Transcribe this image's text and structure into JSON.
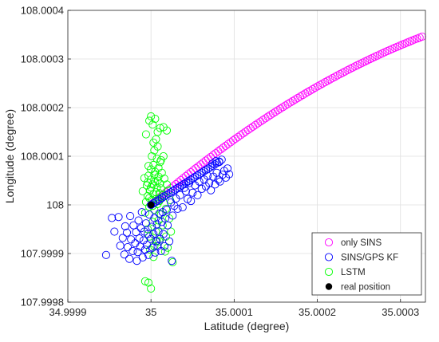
{
  "chart_data": {
    "type": "scatter",
    "title": "",
    "xlabel": "Latitude (degree)",
    "ylabel": "Longitude (degree)",
    "xlim": [
      34.9999,
      35.00033
    ],
    "ylim": [
      107.9998,
      108.0004
    ],
    "xticks": [
      34.9999,
      35.0,
      35.0001,
      35.0002,
      35.0003
    ],
    "xtick_labels": [
      "34.9999",
      "35",
      "35.0001",
      "35.0002",
      "35.0003"
    ],
    "yticks": [
      107.9998,
      107.9999,
      108.0,
      108.0001,
      108.0002,
      108.0003,
      108.0004
    ],
    "ytick_labels": [
      "107.9998",
      "107.9999",
      "108",
      "108.0001",
      "108.0002",
      "108.0003",
      "108.0004"
    ],
    "grid": true,
    "legend_position": "bottom-right",
    "series": [
      {
        "name": "only SINS",
        "color": "#ff00ff",
        "marker": "open-circle",
        "curve": {
          "x_start": 35.0,
          "x_end": 35.000326,
          "y_start": 108.0,
          "y_end": 108.000346,
          "count": 110,
          "shape": "concave"
        }
      },
      {
        "name": "SINS/GPS KF",
        "color": "#0000ff",
        "marker": "open-circle",
        "curve": {
          "x_start": 35.0,
          "x_end": 35.000082,
          "y_start": 108.0,
          "y_end": 108.000089,
          "count": 32,
          "shape": "linear"
        },
        "points": [
          [
            34.999946,
            107.999897
          ],
          [
            34.999953,
            107.999973
          ],
          [
            34.999956,
            107.999945
          ],
          [
            34.999961,
            107.999975
          ],
          [
            34.999963,
            107.999916
          ],
          [
            34.999966,
            107.999932
          ],
          [
            34.999968,
            107.999898
          ],
          [
            34.999969,
            107.999956
          ],
          [
            34.999971,
            107.999943
          ],
          [
            34.999972,
            107.999913
          ],
          [
            34.999974,
            107.999889
          ],
          [
            34.999975,
            107.999977
          ],
          [
            34.999976,
            107.999929
          ],
          [
            34.999978,
            107.999905
          ],
          [
            34.999979,
            107.999958
          ],
          [
            34.999981,
            107.999921
          ],
          [
            34.999982,
            107.999944
          ],
          [
            34.999983,
            107.999885
          ],
          [
            34.999984,
            107.999903
          ],
          [
            34.999985,
            107.999968
          ],
          [
            34.999986,
            107.999931
          ],
          [
            34.999987,
            107.999914
          ],
          [
            34.999988,
            107.999952
          ],
          [
            34.999989,
            107.999985
          ],
          [
            34.99999,
            107.999892
          ],
          [
            34.999991,
            107.999927
          ],
          [
            34.999992,
            107.999945
          ],
          [
            34.999993,
            107.999908
          ],
          [
            34.999994,
            107.999962
          ],
          [
            34.999995,
            107.999918
          ],
          [
            34.999996,
            107.99994
          ],
          [
            34.999997,
            107.999897
          ],
          [
            34.999998,
            107.99998
          ],
          [
            35.0,
            107.99993
          ],
          [
            35.000001,
            107.999955
          ],
          [
            35.000002,
            107.999912
          ],
          [
            35.000003,
            107.99994
          ],
          [
            35.000004,
            107.999973
          ],
          [
            35.000005,
            107.999902
          ],
          [
            35.000006,
            107.999925
          ],
          [
            35.000007,
            107.99996
          ],
          [
            35.000008,
            107.999915
          ],
          [
            35.000009,
            107.999945
          ],
          [
            35.00001,
            107.999982
          ],
          [
            35.000011,
            107.99993
          ],
          [
            35.000012,
            107.999905
          ],
          [
            35.000013,
            107.999965
          ],
          [
            35.000014,
            107.999985
          ],
          [
            35.000015,
            107.99994
          ],
          [
            35.000016,
            107.999915
          ],
          [
            35.000017,
            107.999972
          ],
          [
            35.000019,
            107.99999
          ],
          [
            35.00002,
            107.999958
          ],
          [
            35.000022,
            107.999925
          ],
          [
            35.000024,
            108.000005
          ],
          [
            35.000025,
            107.999885
          ],
          [
            35.000026,
            107.999978
          ],
          [
            35.000028,
            107.999998
          ],
          [
            35.00003,
            108.000013
          ],
          [
            35.000032,
            107.999992
          ],
          [
            35.000035,
            108.00002
          ],
          [
            35.000038,
            107.999995
          ],
          [
            35.00004,
            108.000035
          ],
          [
            35.000042,
            108.000028
          ],
          [
            35.000044,
            108.000012
          ],
          [
            35.000046,
            108.000045
          ],
          [
            35.000048,
            108.000008
          ],
          [
            35.00005,
            108.000025
          ],
          [
            35.000053,
            108.00004
          ],
          [
            35.000056,
            108.00002
          ],
          [
            35.000058,
            108.000048
          ],
          [
            35.000061,
            108.000033
          ],
          [
            35.000064,
            108.000052
          ],
          [
            35.000066,
            108.000038
          ],
          [
            35.000068,
            108.00006
          ],
          [
            35.00007,
            108.000045
          ],
          [
            35.000072,
            108.00003
          ],
          [
            35.000075,
            108.000058
          ],
          [
            35.000077,
            108.000042
          ],
          [
            35.000079,
            108.000066
          ],
          [
            35.000081,
            108.000052
          ],
          [
            35.000083,
            108.000048
          ],
          [
            35.000086,
            108.000062
          ],
          [
            35.000088,
            108.00007
          ],
          [
            35.00009,
            108.000056
          ],
          [
            35.000092,
            108.000075
          ],
          [
            35.000094,
            108.000063
          ],
          [
            35.000074,
            108.000085
          ],
          [
            35.000078,
            108.00009
          ],
          [
            35.000082,
            108.000088
          ],
          [
            35.000085,
            108.000093
          ]
        ]
      },
      {
        "name": "LSTM",
        "color": "#00ff00",
        "marker": "open-circle",
        "points": [
          [
            34.999993,
            107.999984
          ],
          [
            34.999995,
            108.00004
          ],
          [
            34.999996,
            108.000018
          ],
          [
            34.999997,
            108.00006
          ],
          [
            34.999998,
            107.999996
          ],
          [
            34.999999,
            108.00003
          ],
          [
            35.0,
            108.000052
          ],
          [
            35.000001,
            108.00001
          ],
          [
            35.000002,
            108.000042
          ],
          [
            35.000003,
            108.000022
          ],
          [
            35.000004,
            107.99999
          ],
          [
            35.000005,
            108.000048
          ],
          [
            35.000006,
            108.000012
          ],
          [
            35.000007,
            108.000035
          ],
          [
            35.000008,
            108.000002
          ],
          [
            35.000009,
            108.000058
          ],
          [
            35.00001,
            108.000024
          ],
          [
            35.000011,
            108.000044
          ],
          [
            35.000012,
            107.99998
          ],
          [
            35.000013,
            108.000016
          ],
          [
            34.99999,
            108.000028
          ],
          [
            34.999992,
            108.000055
          ],
          [
            34.999994,
            108.000006
          ],
          [
            34.999996,
            108.000046
          ],
          [
            34.999998,
            108.000014
          ],
          [
            35.0,
            108.000036
          ],
          [
            35.000002,
            107.999998
          ],
          [
            35.000004,
            108.000062
          ],
          [
            35.000006,
            108.000026
          ],
          [
            35.000008,
            108.00005
          ],
          [
            35.00001,
            108.000008
          ],
          [
            35.000012,
            108.000034
          ],
          [
            35.000014,
            108.00002
          ],
          [
            35.000016,
            108.000054
          ],
          [
            35.000018,
            107.999992
          ],
          [
            35.000019,
            108.000042
          ],
          [
            35.0,
            108.000073
          ],
          [
            35.000003,
            108.000082
          ],
          [
            35.000005,
            108.000068
          ],
          [
            35.000007,
            108.000095
          ],
          [
            35.000009,
            108.000076
          ],
          [
            35.000011,
            108.000088
          ],
          [
            35.000013,
            108.000066
          ],
          [
            35.000015,
            108.0001
          ],
          [
            34.999997,
            108.00008
          ],
          [
            35.000001,
            108.0001
          ],
          [
            35.000004,
            108.000112
          ],
          [
            35.000008,
            108.00012
          ],
          [
            35.000012,
            108.000092
          ],
          [
            35.000006,
            108.000135
          ],
          [
            34.999998,
            108.000173
          ],
          [
            35.0,
            108.000182
          ],
          [
            35.000002,
            108.000165
          ],
          [
            35.000005,
            108.000177
          ],
          [
            35.000008,
            108.00015
          ],
          [
            35.000011,
            108.000158
          ],
          [
            35.000015,
            108.00016
          ],
          [
            35.000019,
            108.000153
          ],
          [
            34.999994,
            108.000145
          ],
          [
            35.000003,
            108.000128
          ],
          [
            34.999996,
            107.99995
          ],
          [
            34.999998,
            107.999935
          ],
          [
            35.000002,
            107.999965
          ],
          [
            35.000006,
            107.999945
          ],
          [
            35.00001,
            107.999925
          ],
          [
            35.000014,
            107.999958
          ],
          [
            35.000018,
            107.999935
          ],
          [
            35.00002,
            107.999912
          ],
          [
            35.000022,
            107.999972
          ],
          [
            35.000024,
            107.999945
          ],
          [
            35.000026,
            107.999882
          ],
          [
            34.999999,
            107.999908
          ],
          [
            35.000004,
            107.999915
          ],
          [
            34.999997,
            107.99984
          ],
          [
            35.0,
            107.999828
          ],
          [
            34.999993,
            107.999843
          ],
          [
            35.000003,
            107.999893
          ],
          [
            35.000007,
            107.999926
          ],
          [
            35.000017,
            107.999904
          ],
          [
            35.000009,
            107.999968
          ],
          [
            35.000021,
            108.00003
          ],
          [
            35.000023,
            108.00001
          ]
        ]
      },
      {
        "name": "real position",
        "color": "#000000",
        "marker": "filled-dot",
        "points": [
          [
            35.0,
            108.0
          ]
        ]
      }
    ]
  }
}
